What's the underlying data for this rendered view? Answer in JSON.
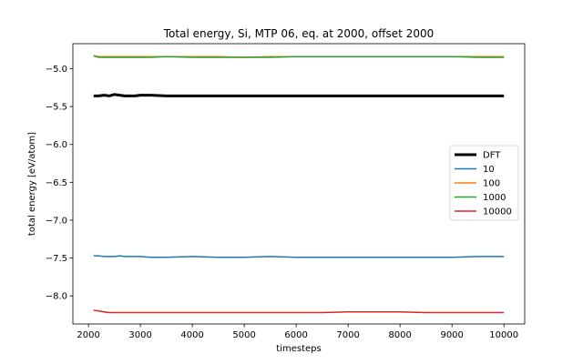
{
  "chart_data": {
    "type": "line",
    "title": "Total energy, Si, MTP 06, eq. at 2000, offset 2000",
    "xlabel": "timesteps",
    "ylabel": "total energy [eV/atom]",
    "xlim": [
      1700,
      10400
    ],
    "ylim": [
      -8.37,
      -4.67
    ],
    "xticks": [
      2000,
      3000,
      4000,
      5000,
      6000,
      7000,
      8000,
      9000,
      10000
    ],
    "xtick_labels": [
      "2000",
      "3000",
      "4000",
      "5000",
      "6000",
      "7000",
      "8000",
      "9000",
      "10000"
    ],
    "yticks": [
      -5.0,
      -5.5,
      -6.0,
      -6.5,
      -7.0,
      -7.5,
      -8.0
    ],
    "ytick_labels": [
      "−5.0",
      "−5.5",
      "−6.0",
      "−6.5",
      "−7.0",
      "−7.5",
      "−8.0"
    ],
    "grid": false,
    "legend_position": "center-right",
    "x": [
      2100,
      2200,
      2300,
      2400,
      2500,
      2600,
      2700,
      2800,
      2900,
      3000,
      3200,
      3500,
      4000,
      4500,
      5000,
      5500,
      6000,
      6500,
      7000,
      7500,
      8000,
      8500,
      9000,
      9500,
      10000
    ],
    "series": [
      {
        "name": "DFT",
        "color": "#000000",
        "width": 3,
        "values": [
          -5.36,
          -5.36,
          -5.35,
          -5.36,
          -5.34,
          -5.35,
          -5.36,
          -5.36,
          -5.36,
          -5.35,
          -5.35,
          -5.36,
          -5.36,
          -5.36,
          -5.36,
          -5.36,
          -5.36,
          -5.36,
          -5.36,
          -5.36,
          -5.36,
          -5.36,
          -5.36,
          -5.36,
          -5.36
        ]
      },
      {
        "name": "10",
        "color": "#1f77b4",
        "width": 1.5,
        "values": [
          -7.47,
          -7.47,
          -7.48,
          -7.48,
          -7.48,
          -7.47,
          -7.48,
          -7.48,
          -7.48,
          -7.48,
          -7.49,
          -7.49,
          -7.48,
          -7.49,
          -7.49,
          -7.48,
          -7.49,
          -7.49,
          -7.49,
          -7.49,
          -7.49,
          -7.49,
          -7.49,
          -7.48,
          -7.48
        ]
      },
      {
        "name": "100",
        "color": "#ff7f0e",
        "width": 1.5,
        "values": [
          -4.83,
          -4.84,
          -4.84,
          -4.84,
          -4.84,
          -4.84,
          -4.84,
          -4.84,
          -4.84,
          -4.84,
          -4.84,
          -4.84,
          -4.84,
          -4.84,
          -4.85,
          -4.84,
          -4.84,
          -4.84,
          -4.84,
          -4.84,
          -4.84,
          -4.84,
          -4.84,
          -4.84,
          -4.84
        ]
      },
      {
        "name": "1000",
        "color": "#2ca02c",
        "width": 1.5,
        "values": [
          -4.83,
          -4.85,
          -4.85,
          -4.85,
          -4.85,
          -4.85,
          -4.85,
          -4.85,
          -4.85,
          -4.85,
          -4.85,
          -4.84,
          -4.85,
          -4.85,
          -4.85,
          -4.85,
          -4.84,
          -4.84,
          -4.84,
          -4.84,
          -4.84,
          -4.84,
          -4.84,
          -4.85,
          -4.85
        ]
      },
      {
        "name": "10000",
        "color": "#d62728",
        "width": 1.5,
        "values": [
          -8.19,
          -8.2,
          -8.21,
          -8.22,
          -8.22,
          -8.22,
          -8.22,
          -8.22,
          -8.22,
          -8.22,
          -8.22,
          -8.22,
          -8.22,
          -8.22,
          -8.22,
          -8.22,
          -8.22,
          -8.22,
          -8.21,
          -8.21,
          -8.21,
          -8.22,
          -8.22,
          -8.22,
          -8.22
        ]
      }
    ]
  }
}
